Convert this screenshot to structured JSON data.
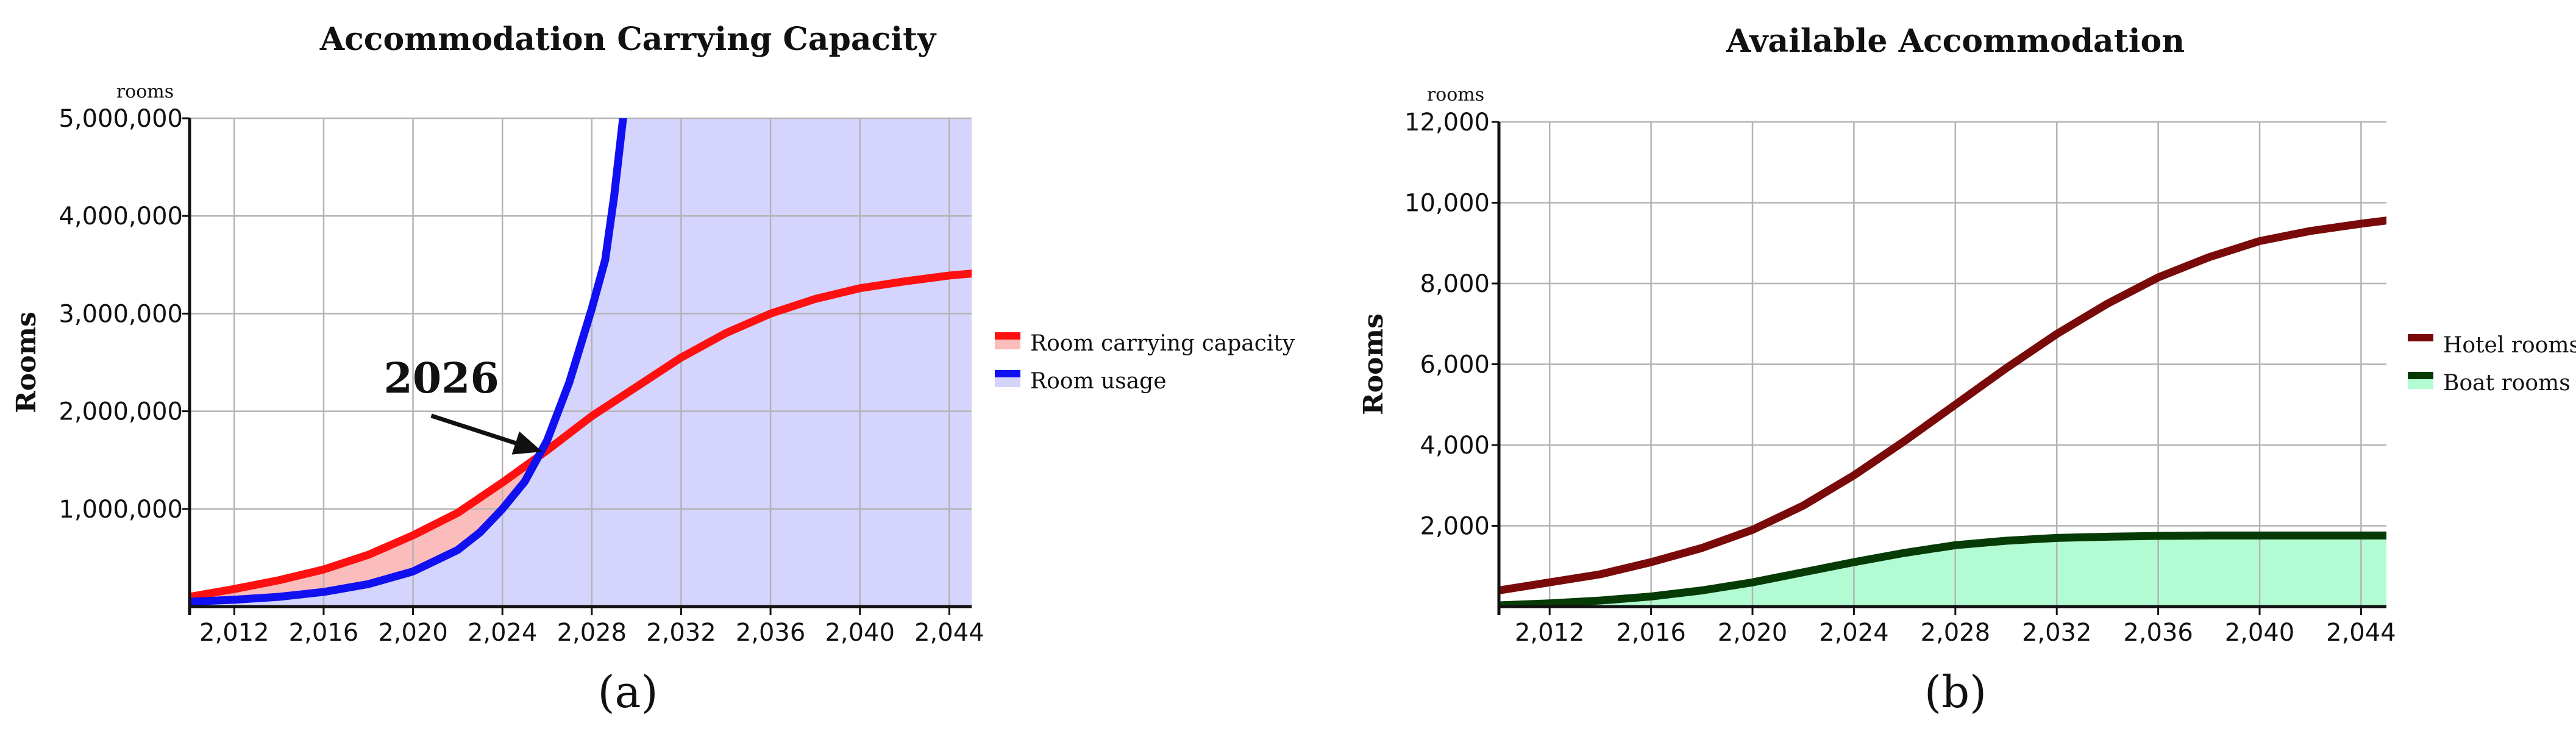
{
  "chart_data": [
    {
      "type": "line",
      "title": "Accommodation Carrying Capacity",
      "panel_label": "(a)",
      "ylabel": "Rooms",
      "yunit": "rooms",
      "xlim": [
        2010,
        2045
      ],
      "ylim": [
        0,
        5000000
      ],
      "xticks": [
        2012,
        2016,
        2020,
        2024,
        2028,
        2032,
        2036,
        2040,
        2044
      ],
      "xtick_labels": [
        "2,012",
        "2,016",
        "2,020",
        "2,024",
        "2,028",
        "2,032",
        "2,036",
        "2,040",
        "2,044"
      ],
      "yticks": [
        1000000,
        2000000,
        3000000,
        4000000,
        5000000
      ],
      "ytick_labels": [
        "1,000,000",
        "2,000,000",
        "3,000,000",
        "4,000,000",
        "5,000,000"
      ],
      "grid": true,
      "legend_position": "right",
      "series": [
        {
          "name": "Room carrying capacity",
          "color": "#ff1010",
          "fill": "#fbbcbc",
          "x": [
            2010,
            2012,
            2014,
            2016,
            2018,
            2020,
            2022,
            2024,
            2026,
            2028,
            2030,
            2032,
            2034,
            2036,
            2038,
            2040,
            2042,
            2044,
            2045
          ],
          "y": [
            100000,
            180000,
            270000,
            380000,
            530000,
            730000,
            960000,
            1270000,
            1600000,
            1950000,
            2250000,
            2550000,
            2800000,
            3000000,
            3150000,
            3260000,
            3330000,
            3390000,
            3410000
          ]
        },
        {
          "name": "Room usage",
          "color": "#1010f0",
          "fill": "#d4d4fc",
          "x": [
            2010,
            2012,
            2014,
            2016,
            2018,
            2020,
            2021,
            2022,
            2023,
            2024,
            2025,
            2026,
            2027,
            2028,
            2028.6,
            2029,
            2029.4
          ],
          "y": [
            50000,
            70000,
            100000,
            150000,
            230000,
            360000,
            470000,
            580000,
            760000,
            1000000,
            1280000,
            1700000,
            2300000,
            3050000,
            3550000,
            4200000,
            5000000
          ]
        }
      ],
      "annotations": [
        {
          "text": "2026",
          "target_x": 2026,
          "target_y": 1580000
        }
      ]
    },
    {
      "type": "line",
      "title": "Available Accommodation",
      "panel_label": "(b)",
      "ylabel": "Rooms",
      "yunit": "rooms",
      "xlim": [
        2010,
        2045
      ],
      "ylim": [
        0,
        12000
      ],
      "xticks": [
        2012,
        2016,
        2020,
        2024,
        2028,
        2032,
        2036,
        2040,
        2044
      ],
      "xtick_labels": [
        "2,012",
        "2,016",
        "2,020",
        "2,024",
        "2,028",
        "2,032",
        "2,036",
        "2,040",
        "2,044"
      ],
      "yticks": [
        2000,
        4000,
        6000,
        8000,
        10000,
        12000
      ],
      "ytick_labels": [
        "2,000",
        "4,000",
        "6,000",
        "8,000",
        "10,000",
        "12,000"
      ],
      "grid": true,
      "legend_position": "right",
      "series": [
        {
          "name": "Hotel rooms",
          "color": "#7a0a0a",
          "fill": null,
          "x": [
            2010,
            2012,
            2014,
            2016,
            2018,
            2020,
            2022,
            2024,
            2026,
            2028,
            2030,
            2032,
            2034,
            2036,
            2038,
            2040,
            2042,
            2044,
            2045
          ],
          "y": [
            400,
            600,
            800,
            1100,
            1450,
            1900,
            2500,
            3250,
            4100,
            5000,
            5900,
            6750,
            7500,
            8150,
            8650,
            9050,
            9300,
            9480,
            9560
          ]
        },
        {
          "name": "Boat rooms",
          "color": "#063b06",
          "fill": "#b3fbd3",
          "x": [
            2010,
            2012,
            2014,
            2016,
            2018,
            2020,
            2022,
            2024,
            2026,
            2028,
            2030,
            2032,
            2034,
            2036,
            2038,
            2040,
            2042,
            2044,
            2045
          ],
          "y": [
            30,
            80,
            150,
            250,
            400,
            600,
            850,
            1100,
            1330,
            1520,
            1630,
            1700,
            1730,
            1750,
            1760,
            1760,
            1760,
            1760,
            1760
          ]
        }
      ]
    }
  ]
}
